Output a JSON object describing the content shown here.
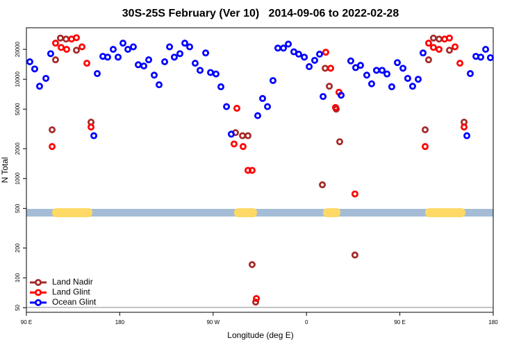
{
  "chart_data": {
    "type": "scatter",
    "title": "30S-25S February (Ver 10)   2014-09-06 to 2022-02-28",
    "x_label": "Longitude (deg E)",
    "y_label": "N Total",
    "log_y": true,
    "legend": "lower left",
    "xlim": [
      90,
      540
    ],
    "xticks": [
      {
        "value": 90,
        "label": "90 E"
      },
      180,
      {
        "value": 270,
        "label": "90 W"
      },
      {
        "value": 360,
        "label": "0"
      },
      {
        "value": 450,
        "label": "90 E"
      },
      {
        "value": 540,
        "label": "180"
      }
    ],
    "ylim": [
      45,
      33000
    ],
    "yticks": [
      50,
      100,
      200,
      500,
      1000,
      2000,
      5000,
      10000,
      20000
    ],
    "series": [
      {
        "name": "Land Nadir",
        "color": "#a52a2a",
        "x": [
          114.8,
          118.1,
          122.8,
          128.2,
          138.2,
          152.3,
          291.6,
          298.3,
          303.6,
          307.6,
          311.0,
          378.0,
          382.0,
          388.7,
          392.0,
          375.3,
          406.7,
          474.4,
          477.7,
          482.4,
          487.8,
          497.8,
          511.9
        ],
        "values": [
          3100,
          15700,
          26000,
          25400,
          19600,
          3700,
          2900,
          2700,
          2700,
          136,
          57,
          12900,
          8500,
          5000,
          2350,
          865,
          170,
          3100,
          15700,
          26000,
          25400,
          19600,
          3700
        ]
      },
      {
        "name": "Land Glint",
        "color": "#ff0000",
        "x": [
          114.8,
          118.1,
          123.5,
          128.8,
          133.5,
          138.2,
          143.6,
          148.3,
          152.3,
          290.2,
          292.9,
          298.9,
          303.6,
          307.6,
          311.7,
          378.6,
          383.3,
          388.0,
          391.3,
          406.7,
          474.4,
          477.7,
          482.4,
          487.8,
          493.1,
          497.8,
          503.2,
          507.9,
          511.9
        ],
        "values": [
          2100,
          23100,
          20900,
          20000,
          25400,
          26200,
          21200,
          14500,
          3300,
          2230,
          5100,
          2100,
          1210,
          1210,
          62,
          18700,
          12900,
          5200,
          7400,
          700,
          2100,
          23100,
          20900,
          20000,
          25400,
          26000,
          21200,
          14500,
          3300
        ]
      },
      {
        "name": "Ocean Glint",
        "color": "#0000ff",
        "x": [
          93.3,
          98.0,
          102.7,
          108.8,
          113.4,
          155.0,
          158.3,
          163.7,
          168.3,
          173.7,
          178.4,
          183.1,
          187.8,
          193.1,
          197.8,
          203.2,
          207.9,
          213.2,
          217.9,
          223.3,
          228.0,
          232.6,
          238.0,
          242.7,
          247.4,
          252.7,
          257.4,
          262.8,
          267.5,
          272.8,
          277.5,
          282.9,
          287.5,
          313.0,
          317.7,
          322.4,
          327.7,
          332.4,
          337.8,
          342.5,
          347.8,
          352.5,
          357.9,
          362.6,
          367.9,
          372.6,
          376.0,
          393.4,
          402.7,
          407.4,
          412.1,
          418.1,
          422.8,
          427.5,
          432.9,
          437.6,
          442.2,
          447.6,
          453.0,
          457.6,
          462.3,
          467.7,
          472.4,
          514.6,
          517.9,
          523.3,
          528.0,
          532.7,
          537.3
        ],
        "values": [
          15000,
          12700,
          8500,
          10200,
          18100,
          2700,
          11400,
          17000,
          16700,
          20000,
          16700,
          23100,
          20000,
          21200,
          14000,
          13600,
          15700,
          11000,
          8800,
          15000,
          21200,
          16700,
          18100,
          23100,
          21200,
          14500,
          12300,
          18400,
          11700,
          11300,
          8400,
          5300,
          2800,
          4300,
          6400,
          5300,
          9700,
          20600,
          20600,
          22600,
          18900,
          17900,
          16700,
          13400,
          15500,
          17900,
          6700,
          6900,
          15300,
          13100,
          13800,
          11000,
          9000,
          12300,
          12300,
          11300,
          8400,
          14700,
          12900,
          10200,
          8500,
          10000,
          18400,
          2700,
          11400,
          17000,
          16700,
          20000,
          16500
        ]
      }
    ]
  }
}
